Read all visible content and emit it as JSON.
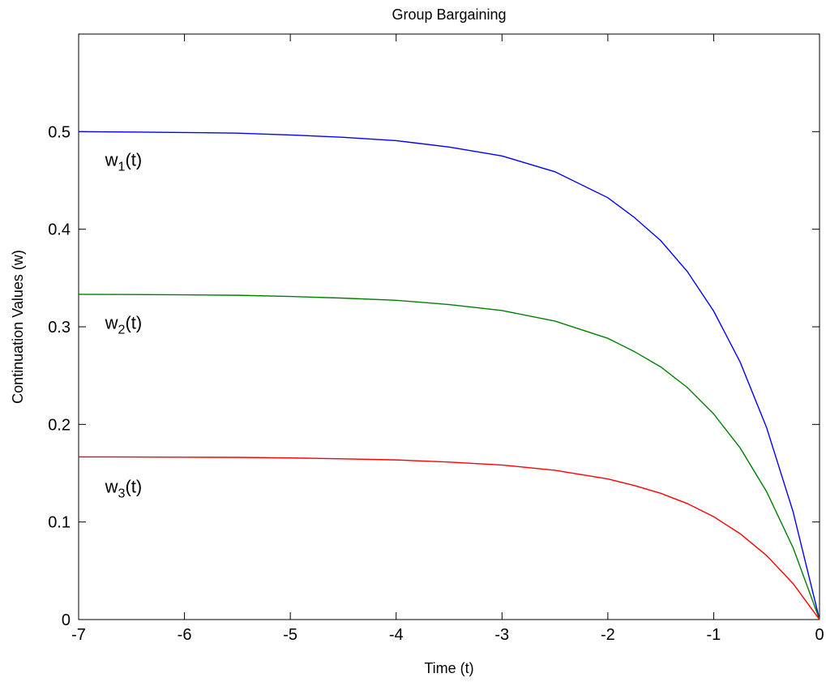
{
  "chart_data": {
    "type": "line",
    "title": "Group Bargaining",
    "xlabel": "Time (t)",
    "ylabel": "Continuation Values (w)",
    "xlim": [
      -7,
      0
    ],
    "ylim": [
      0,
      0.6
    ],
    "xticks": [
      "-7",
      "-6",
      "-5",
      "-4",
      "-3",
      "-2",
      "-1",
      "0"
    ],
    "yticks": [
      "0",
      "0.1",
      "0.2",
      "0.3",
      "0.4",
      "0.5"
    ],
    "grid": false,
    "series": [
      {
        "label_base": "w",
        "label_sub": "1",
        "label_tail": "(t)",
        "color": "#0000ff",
        "x": [
          -7,
          -6.5,
          -6,
          -5.5,
          -5,
          -4.5,
          -4,
          -3.5,
          -3,
          -2.5,
          -2,
          -1.75,
          -1.5,
          -1.25,
          -1,
          -0.75,
          -0.5,
          -0.25,
          0
        ],
        "y": [
          0.5,
          0.4996,
          0.4991,
          0.4985,
          0.4966,
          0.4942,
          0.4908,
          0.4842,
          0.4751,
          0.4589,
          0.4323,
          0.4121,
          0.3883,
          0.3568,
          0.3161,
          0.2639,
          0.1967,
          0.1106,
          0.0
        ]
      },
      {
        "label_base": "w",
        "label_sub": "2",
        "label_tail": "(t)",
        "color": "#008000",
        "x": [
          -7,
          -6.5,
          -6,
          -5.5,
          -5,
          -4.5,
          -4,
          -3.5,
          -3,
          -2.5,
          -2,
          -1.75,
          -1.5,
          -1.25,
          -1,
          -0.75,
          -0.5,
          -0.25,
          0
        ],
        "y": [
          0.3333,
          0.3331,
          0.3328,
          0.3323,
          0.3311,
          0.3294,
          0.3272,
          0.3228,
          0.3167,
          0.3059,
          0.2882,
          0.2747,
          0.2589,
          0.2379,
          0.2107,
          0.1759,
          0.1311,
          0.0737,
          0.0
        ]
      },
      {
        "label_base": "w",
        "label_sub": "3",
        "label_tail": "(t)",
        "color": "#ff0000",
        "x": [
          -7,
          -6.5,
          -6,
          -5.5,
          -5,
          -4.5,
          -4,
          -3.5,
          -3,
          -2.5,
          -2,
          -1.75,
          -1.5,
          -1.25,
          -1,
          -0.75,
          -0.5,
          -0.25,
          0
        ],
        "y": [
          0.1667,
          0.1666,
          0.1664,
          0.1662,
          0.1656,
          0.1647,
          0.1636,
          0.1614,
          0.1584,
          0.153,
          0.1441,
          0.1374,
          0.1294,
          0.1189,
          0.1054,
          0.088,
          0.0656,
          0.0369,
          0.0
        ]
      }
    ]
  }
}
